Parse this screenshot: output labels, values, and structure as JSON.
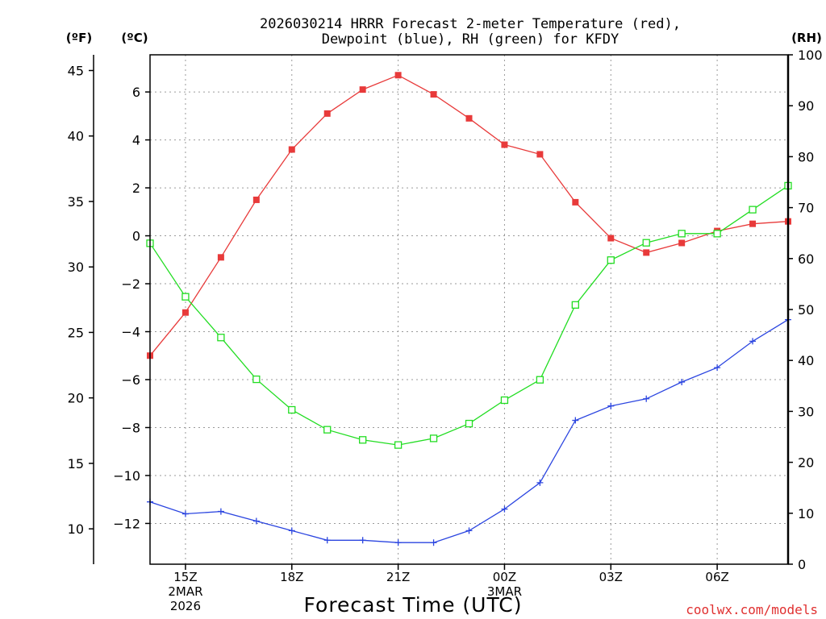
{
  "chart_data": {
    "type": "line",
    "title_line1": "2026030214 HRRR Forecast 2-meter Temperature (red),",
    "title_line2": "Dewpoint (blue), RH (green) for KFDY",
    "xlabel": "Forecast Time (UTC)",
    "credit": "coolwx.com/models",
    "axes": {
      "fahrenheit": {
        "unit_label": "(ºF)",
        "ticks": [
          10,
          15,
          20,
          25,
          30,
          35,
          40,
          45
        ],
        "range": [
          7.3,
          46.2
        ]
      },
      "celsius": {
        "unit_label": "(ºC)",
        "ticks": [
          -12,
          -10,
          -8,
          -6,
          -4,
          -2,
          0,
          2,
          4,
          6
        ],
        "range": [
          -13.7,
          7.55
        ]
      },
      "rh": {
        "unit_label": "(RH)",
        "ticks": [
          0,
          10,
          20,
          30,
          40,
          50,
          60,
          70,
          80,
          90,
          100
        ],
        "range": [
          0,
          100
        ]
      }
    },
    "x_hours": [
      0,
      1,
      2,
      3,
      4,
      5,
      6,
      7,
      8,
      9,
      10,
      11,
      12,
      13,
      14,
      15,
      16,
      17,
      18
    ],
    "x_ticks": [
      {
        "hour": 1,
        "label": "15Z",
        "sub1": "2MAR",
        "sub2": "2026"
      },
      {
        "hour": 4,
        "label": "18Z"
      },
      {
        "hour": 7,
        "label": "21Z"
      },
      {
        "hour": 10,
        "label": "00Z",
        "sub1": "3MAR"
      },
      {
        "hour": 13,
        "label": "03Z"
      },
      {
        "hour": 16,
        "label": "06Z"
      }
    ],
    "series": [
      {
        "name": "Temperature",
        "axis": "celsius",
        "color": "#e83a3a",
        "marker": "filled-square",
        "values": [
          -5.0,
          -3.2,
          -0.9,
          1.5,
          3.6,
          5.1,
          6.1,
          6.7,
          5.9,
          4.9,
          3.8,
          3.4,
          1.4,
          -0.1,
          -0.7,
          -0.3,
          0.2,
          0.5,
          0.6
        ]
      },
      {
        "name": "Dewpoint",
        "axis": "celsius",
        "color": "#2b45e0",
        "marker": "plus",
        "values": [
          -11.1,
          -11.6,
          -11.5,
          -11.9,
          -12.3,
          -12.7,
          -12.7,
          -12.8,
          -12.8,
          -12.3,
          -11.4,
          -10.3,
          -7.7,
          -7.1,
          -6.8,
          -6.1,
          -5.5,
          -4.4,
          -3.5
        ]
      },
      {
        "name": "RH",
        "axis": "rh",
        "color": "#22dd22",
        "marker": "open-square",
        "values": [
          63,
          52.5,
          44.5,
          36.3,
          30.3,
          26.4,
          24.4,
          23.4,
          24.7,
          27.6,
          32.2,
          36.2,
          50.9,
          59.7,
          63.1,
          64.9,
          64.9,
          69.6,
          74.3
        ]
      }
    ]
  }
}
